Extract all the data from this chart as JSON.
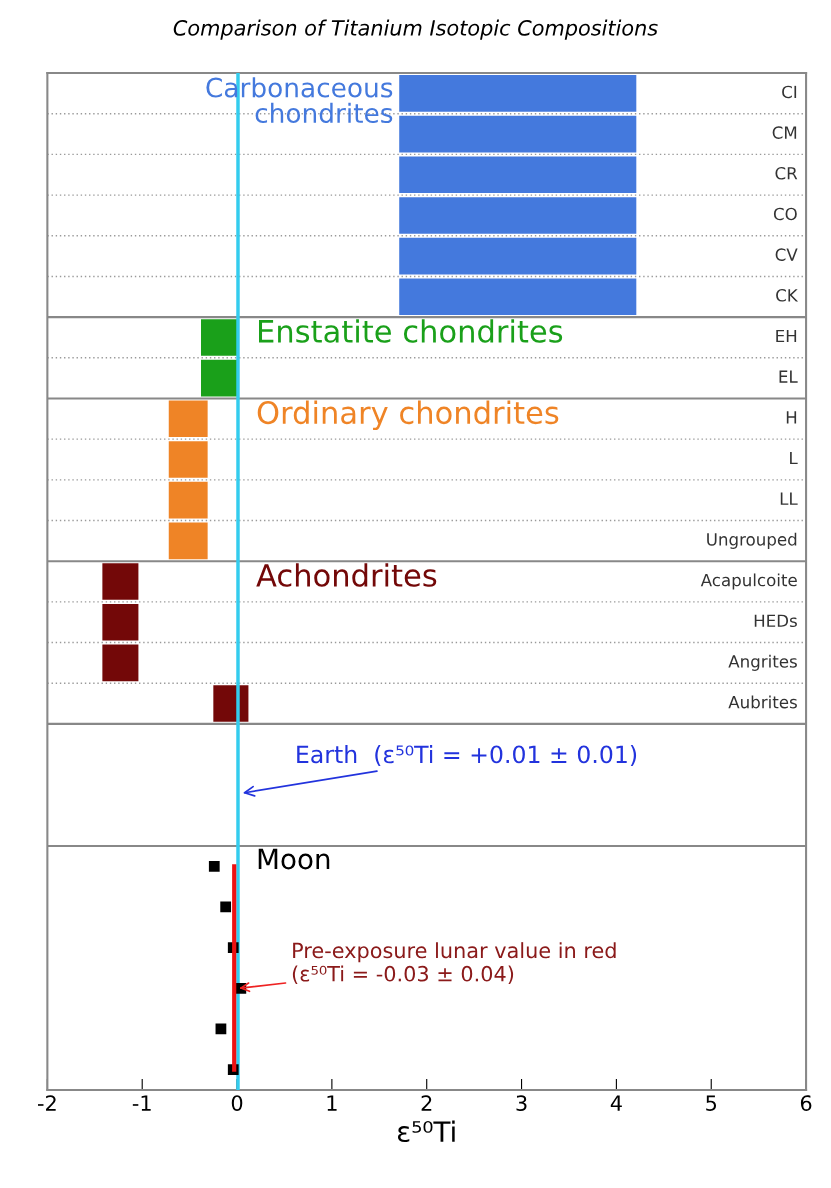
{
  "chart_data": {
    "type": "bar",
    "orientation": "horizontal",
    "title": "Comparison of Titanium Isotopic Compositions",
    "xlabel": "ε⁵⁰Ti",
    "categories": [
      "CI",
      "CM",
      "CR",
      "CO",
      "CV",
      "CK",
      "EH",
      "EL",
      "H",
      "L",
      "LL",
      "Ungrouped",
      "Acapulcoite",
      "HEDs",
      "Angrites",
      "Aubrites",
      null,
      null,
      null,
      null,
      null,
      null,
      null,
      null,
      null
    ],
    "series": [
      {
        "name": "Carbonaceous chondrites",
        "color": "#4479dd",
        "base": [
          1.71,
          1.71,
          1.71,
          1.71,
          1.71,
          1.71,
          null,
          null,
          null,
          null,
          null,
          null,
          null,
          null,
          null,
          null,
          null,
          null,
          null,
          null,
          null,
          null,
          null,
          null,
          null
        ],
        "values": [
          2.5,
          2.5,
          2.5,
          2.5,
          2.5,
          2.5,
          null,
          null,
          null,
          null,
          null,
          null,
          null,
          null,
          null,
          null,
          null,
          null,
          null,
          null,
          null,
          null,
          null,
          null,
          null
        ]
      },
      {
        "name": "Enstatite chondrites",
        "color": "#1aa01a",
        "base": [
          null,
          null,
          null,
          null,
          null,
          null,
          -0.38,
          -0.38,
          null,
          null,
          null,
          null,
          null,
          null,
          null,
          null,
          null,
          null,
          null,
          null,
          null,
          null,
          null,
          null,
          null
        ],
        "values": [
          null,
          null,
          null,
          null,
          null,
          null,
          0.38,
          0.38,
          null,
          null,
          null,
          null,
          null,
          null,
          null,
          null,
          null,
          null,
          null,
          null,
          null,
          null,
          null,
          null,
          null
        ]
      },
      {
        "name": "Ordinary chondrites",
        "color": "#ef8426",
        "base": [
          null,
          null,
          null,
          null,
          null,
          null,
          null,
          null,
          -0.72,
          -0.72,
          -0.72,
          -0.72,
          null,
          null,
          null,
          null,
          null,
          null,
          null,
          null,
          null,
          null,
          null,
          null,
          null
        ],
        "values": [
          null,
          null,
          null,
          null,
          null,
          null,
          null,
          null,
          0.41,
          0.41,
          0.41,
          0.41,
          null,
          null,
          null,
          null,
          null,
          null,
          null,
          null,
          null,
          null,
          null,
          null,
          null
        ]
      },
      {
        "name": "Achondrites",
        "color": "#730808",
        "base": [
          null,
          null,
          null,
          null,
          null,
          null,
          null,
          null,
          null,
          null,
          null,
          null,
          -1.42,
          -1.42,
          -1.42,
          -0.25,
          null,
          null,
          null,
          null,
          null,
          null,
          null,
          null,
          null
        ],
        "values": [
          null,
          null,
          null,
          null,
          null,
          null,
          null,
          null,
          null,
          null,
          null,
          null,
          0.38,
          0.38,
          0.38,
          0.37,
          null,
          null,
          null,
          null,
          null,
          null,
          null,
          null,
          null
        ]
      },
      {
        "name": "Moon",
        "type": "scatter",
        "marker": "square",
        "color": "#000000",
        "values": [
          null,
          null,
          null,
          null,
          null,
          null,
          null,
          null,
          null,
          null,
          null,
          null,
          null,
          null,
          null,
          null,
          null,
          null,
          null,
          -0.24,
          -0.12,
          -0.04,
          0.04,
          -0.17,
          -0.04
        ]
      },
      {
        "type": "line",
        "color": "#ee1111",
        "values": [
          null,
          null,
          null,
          null,
          null,
          null,
          null,
          null,
          null,
          null,
          null,
          null,
          null,
          null,
          null,
          null,
          null,
          null,
          null,
          -0.03,
          -0.03,
          -0.03,
          -0.03,
          -0.03,
          -0.03
        ]
      }
    ],
    "xlim": [
      -2,
      6
    ],
    "xticks": [
      -2,
      -1,
      0,
      1,
      2,
      3,
      4,
      5,
      6
    ],
    "ref_lines": [
      {
        "axis": "x",
        "value": 0.01,
        "color": "#33ccee"
      }
    ],
    "annotations": [
      {
        "text": "Earth  (ε⁵⁰Ti = +0.01 ± 0.01)",
        "x": 0.01
      },
      {
        "text": "Pre-exposure lunar value in red\n(ε⁵⁰Ti = -0.03 ± 0.04)",
        "x": -0.03
      }
    ],
    "grid": "y",
    "legend": false
  }
}
